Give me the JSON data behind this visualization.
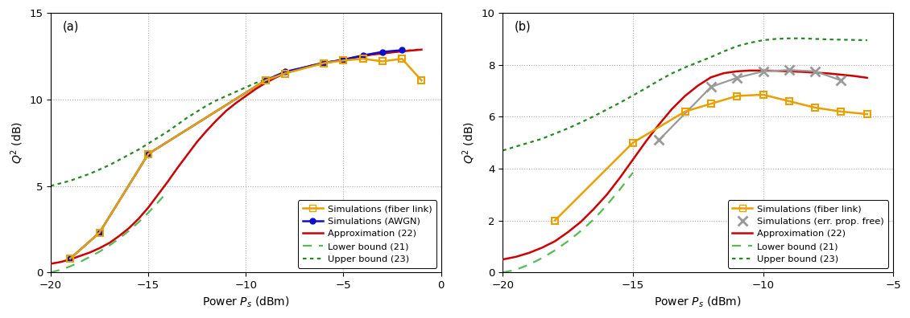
{
  "panel_a": {
    "xlim": [
      -20,
      0
    ],
    "ylim": [
      0,
      15
    ],
    "xticks": [
      -20,
      -15,
      -10,
      -5,
      0
    ],
    "yticks": [
      0,
      5,
      10,
      15
    ],
    "xlabel": "Power $P_s$ (dBm)",
    "ylabel": "$Q^2$ (dB)",
    "label": "(a)",
    "sim_fiber_x": [
      -19,
      -17.5,
      -15,
      -9,
      -8,
      -6,
      -5,
      -4,
      -3,
      -2,
      -1
    ],
    "sim_fiber_y": [
      0.8,
      2.3,
      6.85,
      11.1,
      11.5,
      12.1,
      12.25,
      12.35,
      12.2,
      12.35,
      11.1
    ],
    "sim_awgn_x": [
      -19,
      -17.5,
      -15,
      -9,
      -8,
      -6,
      -5,
      -4,
      -3,
      -2
    ],
    "sim_awgn_y": [
      0.8,
      2.3,
      6.85,
      11.1,
      11.6,
      12.1,
      12.3,
      12.55,
      12.75,
      12.85
    ],
    "approx_x": [
      -20,
      -19.5,
      -19,
      -18.5,
      -18,
      -17.5,
      -17,
      -16.5,
      -16,
      -15.5,
      -15,
      -14.5,
      -14,
      -13.5,
      -13,
      -12.5,
      -12,
      -11.5,
      -11,
      -10.5,
      -10,
      -9.5,
      -9,
      -8.5,
      -8,
      -7.5,
      -7,
      -6.5,
      -6,
      -5.5,
      -5,
      -4.5,
      -4,
      -3.5,
      -3,
      -2.5,
      -2,
      -1.5,
      -1
    ],
    "approx_y": [
      0.5,
      0.6,
      0.75,
      0.95,
      1.15,
      1.4,
      1.7,
      2.1,
      2.55,
      3.1,
      3.75,
      4.5,
      5.25,
      6.05,
      6.8,
      7.55,
      8.2,
      8.8,
      9.35,
      9.8,
      10.2,
      10.6,
      10.95,
      11.25,
      11.5,
      11.7,
      11.85,
      12.0,
      12.1,
      12.2,
      12.3,
      12.4,
      12.5,
      12.6,
      12.65,
      12.72,
      12.78,
      12.83,
      12.88
    ],
    "lower_x": [
      -20,
      -19.5,
      -19,
      -18.5,
      -18,
      -17.5,
      -17,
      -16.5,
      -16,
      -15.5,
      -15,
      -14.5,
      -14
    ],
    "lower_y": [
      0.0,
      0.15,
      0.35,
      0.6,
      0.9,
      1.2,
      1.55,
      1.95,
      2.4,
      2.9,
      3.45,
      4.05,
      4.7
    ],
    "upper_x": [
      -20,
      -19.5,
      -19,
      -18.5,
      -18,
      -17.5,
      -17,
      -16.5,
      -16,
      -15.5,
      -15,
      -14.5,
      -14,
      -13.5,
      -13,
      -12.5,
      -12,
      -11.5,
      -11,
      -10.5,
      -10,
      -9.5,
      -9,
      -8.5,
      -8,
      -7.5,
      -7,
      -6.5,
      -6,
      -5.5,
      -5,
      -4.5,
      -4,
      -3.5,
      -3,
      -2.5,
      -2,
      -1.5,
      -1
    ],
    "upper_y": [
      5.0,
      5.15,
      5.3,
      5.5,
      5.7,
      5.95,
      6.2,
      6.5,
      6.8,
      7.1,
      7.45,
      7.8,
      8.15,
      8.55,
      8.95,
      9.3,
      9.65,
      9.95,
      10.2,
      10.45,
      10.7,
      10.95,
      11.15,
      11.35,
      11.55,
      11.7,
      11.85,
      12.0,
      12.12,
      12.22,
      12.32,
      12.42,
      12.52,
      12.6,
      12.68,
      12.74,
      12.8,
      12.85,
      12.9
    ],
    "legend_labels": [
      "Simulations (fiber link)",
      "Simulations (AWGN)",
      "Approximation (22)",
      "Lower bound (21)",
      "Upper bound (23)"
    ]
  },
  "panel_b": {
    "xlim": [
      -20,
      -5
    ],
    "ylim": [
      0,
      10
    ],
    "xticks": [
      -20,
      -15,
      -10,
      -5
    ],
    "yticks": [
      0,
      2,
      4,
      6,
      8,
      10
    ],
    "xlabel": "Power $P_s$ (dBm)",
    "ylabel": "$Q^2$ (dB)",
    "label": "(b)",
    "sim_fiber_x": [
      -18,
      -15,
      -13,
      -12,
      -11,
      -10,
      -9,
      -8,
      -7,
      -6
    ],
    "sim_fiber_y": [
      2.0,
      5.0,
      6.2,
      6.5,
      6.8,
      6.85,
      6.6,
      6.35,
      6.2,
      6.1
    ],
    "sim_errprop_x": [
      -14,
      -12,
      -11,
      -10,
      -9,
      -8,
      -7
    ],
    "sim_errprop_y": [
      5.1,
      7.15,
      7.5,
      7.75,
      7.8,
      7.75,
      7.4
    ],
    "approx_x": [
      -20,
      -19.5,
      -19,
      -18.5,
      -18,
      -17.5,
      -17,
      -16.5,
      -16,
      -15.5,
      -15,
      -14.5,
      -14,
      -13.5,
      -13,
      -12.5,
      -12,
      -11.5,
      -11,
      -10.5,
      -10,
      -9.5,
      -9,
      -8.5,
      -8,
      -7.5,
      -7,
      -6.5,
      -6
    ],
    "approx_y": [
      0.5,
      0.6,
      0.75,
      0.95,
      1.2,
      1.55,
      1.95,
      2.45,
      3.0,
      3.65,
      4.35,
      5.05,
      5.7,
      6.3,
      6.8,
      7.2,
      7.52,
      7.68,
      7.75,
      7.78,
      7.78,
      7.77,
      7.75,
      7.73,
      7.7,
      7.67,
      7.62,
      7.57,
      7.5
    ],
    "lower_x": [
      -20,
      -19.5,
      -19,
      -18.5,
      -18,
      -17.5,
      -17,
      -16.5,
      -16,
      -15.5,
      -15
    ],
    "lower_y": [
      0.0,
      0.1,
      0.3,
      0.55,
      0.85,
      1.2,
      1.6,
      2.05,
      2.6,
      3.2,
      3.85
    ],
    "upper_x": [
      -20,
      -19.5,
      -19,
      -18.5,
      -18,
      -17.5,
      -17,
      -16.5,
      -16,
      -15.5,
      -15,
      -14.5,
      -14,
      -13.5,
      -13,
      -12.5,
      -12,
      -11.5,
      -11,
      -10.5,
      -10,
      -9.5,
      -9,
      -8.5,
      -8,
      -7.5,
      -7,
      -6.5,
      -6
    ],
    "upper_y": [
      4.7,
      4.85,
      5.0,
      5.15,
      5.35,
      5.55,
      5.78,
      6.02,
      6.28,
      6.54,
      6.82,
      7.1,
      7.4,
      7.67,
      7.9,
      8.1,
      8.3,
      8.52,
      8.72,
      8.85,
      8.95,
      9.0,
      9.02,
      9.02,
      9.0,
      8.98,
      8.97,
      8.96,
      8.95
    ],
    "legend_labels": [
      "Simulations (fiber link)",
      "Simulations (err. prop. free)",
      "Approximation (22)",
      "Lower bound (21)",
      "Upper bound (23)"
    ]
  },
  "colors": {
    "sim_fiber": "#E8A000",
    "sim_awgn": "#1010CC",
    "sim_errprop": "#999999",
    "approx": "#CC0000",
    "lower": "#55BB55",
    "upper": "#228822"
  },
  "grid_color": "#AAAAAA",
  "axis_color": "#000000"
}
